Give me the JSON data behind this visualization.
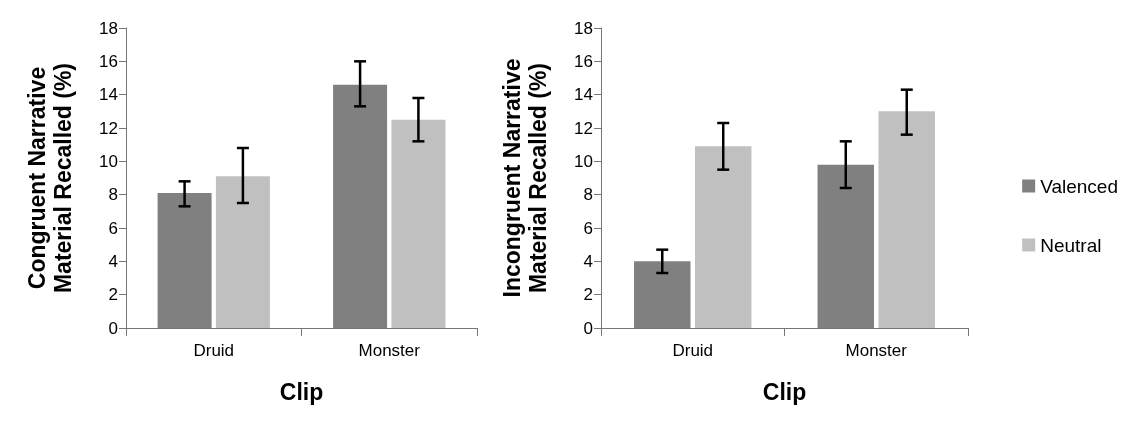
{
  "chart_data": [
    {
      "type": "bar",
      "xlabel": "Clip",
      "ylabel": "Congruent Narrative Material Recalled (%)",
      "categories": [
        "Druid",
        "Monster"
      ],
      "series": [
        {
          "color": "#808080",
          "values": [
            8.1,
            14.6
          ],
          "errors": [
            [
              7.3,
              8.8
            ],
            [
              13.3,
              16.0
            ]
          ]
        },
        {
          "color": "#c0c0c0",
          "values": [
            9.1,
            12.5
          ],
          "errors": [
            [
              7.5,
              10.8
            ],
            [
              11.2,
              13.8
            ]
          ]
        }
      ],
      "ylim": [
        0,
        18
      ],
      "yticks": [
        0,
        2,
        4,
        6,
        8,
        10,
        12,
        14,
        16,
        18
      ],
      "grid": false,
      "legend": false
    },
    {
      "type": "bar",
      "xlabel": "Clip",
      "ylabel": "Incongruent Narrative Material Recalled (%)",
      "categories": [
        "Druid",
        "Monster"
      ],
      "series": [
        {
          "name": "Valenced",
          "color": "#808080",
          "values": [
            4.0,
            9.8
          ],
          "errors": [
            [
              3.3,
              4.7
            ],
            [
              8.4,
              11.2
            ]
          ]
        },
        {
          "name": "Neutral",
          "color": "#c0c0c0",
          "values": [
            10.9,
            13.0
          ],
          "errors": [
            [
              9.5,
              12.3
            ],
            [
              11.6,
              14.3
            ]
          ]
        }
      ],
      "ylim": [
        0,
        18
      ],
      "yticks": [
        0,
        2,
        4,
        6,
        8,
        10,
        12,
        14,
        16,
        18
      ],
      "grid": false,
      "legend": "right"
    }
  ]
}
